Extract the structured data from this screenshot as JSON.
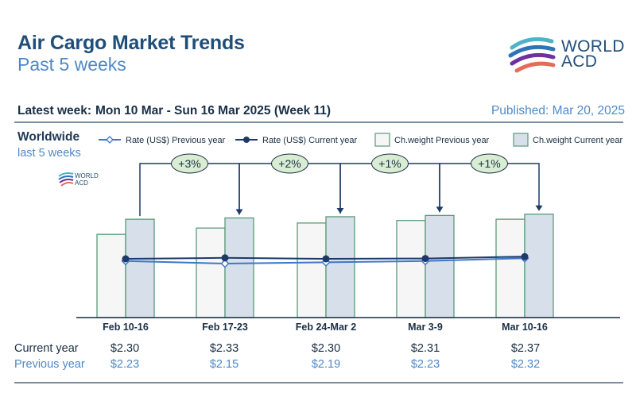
{
  "header": {
    "title": "Air Cargo Market Trends",
    "subtitle": "Past 5 weeks",
    "logo_line1": "WORLD",
    "logo_line2": "ACD",
    "latest_label": "Latest week:",
    "latest_value": "Mon 10 Mar - Sun 16 Mar 2025 (Week 11)",
    "published": "Published: Mar 20, 2025"
  },
  "region": {
    "name": "Worldwide",
    "period": "last 5 weeks",
    "watermark_line1": "WORLD",
    "watermark_line2": "ACD"
  },
  "rows": {
    "current_label": "Current year",
    "previous_label": "Previous year",
    "current_values": [
      "$2.30",
      "$2.33",
      "$2.30",
      "$2.31",
      "$2.37"
    ],
    "previous_values": [
      "$2.23",
      "$2.15",
      "$2.19",
      "$2.23",
      "$2.32"
    ]
  },
  "colors": {
    "prev_bar_fill": "#f6f6f6",
    "curr_bar_fill": "#d7e0ea",
    "bar_stroke": "#5b9a78",
    "curr_line": "#1f3a68",
    "prev_line": "#3f78c8",
    "bubble_fill": "#d8edd2",
    "arrow": "#1f3a68"
  },
  "chart_data": {
    "type": "bar",
    "categories": [
      "Feb 10-16",
      "Feb 17-23",
      "Feb 24-Mar 2",
      "Mar 3-9",
      "Mar 10-16"
    ],
    "legend": [
      "Rate (US$) Previous year",
      "Rate (US$) Current year",
      "Ch.weight Previous year",
      "Ch.weight Current year"
    ],
    "legend_position": "top",
    "series": [
      {
        "name": "Ch.weight Previous year",
        "kind": "bar",
        "values": [
          0.66,
          0.71,
          0.75,
          0.77,
          0.78
        ]
      },
      {
        "name": "Ch.weight Current year",
        "kind": "bar",
        "values": [
          0.78,
          0.79,
          0.8,
          0.81,
          0.82
        ]
      },
      {
        "name": "Rate (US$) Previous year",
        "kind": "line",
        "values": [
          2.23,
          2.15,
          2.19,
          2.23,
          2.32
        ]
      },
      {
        "name": "Rate (US$) Current year",
        "kind": "line",
        "values": [
          2.3,
          2.33,
          2.3,
          2.31,
          2.37
        ]
      }
    ],
    "changes": [
      "+3%",
      "+2%",
      "+1%",
      "+1%"
    ],
    "rate_ylim": [
      0,
      4
    ],
    "grid": false
  }
}
